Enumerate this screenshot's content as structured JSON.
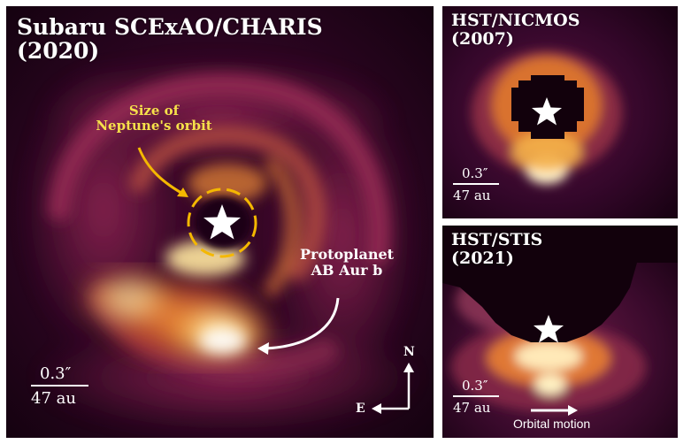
{
  "main_panel": {
    "title_line1": "Subaru SCExAO/CHARIS",
    "title_line2": "(2020)",
    "neptune_label_line1": "Size of",
    "neptune_label_line2": "Neptune's orbit",
    "planet_label_line1": "Protoplanet",
    "planet_label_line2": "AB Aur b",
    "scale_angle": "0.3″",
    "scale_distance": "47 au",
    "compass_north": "N",
    "compass_east": "E"
  },
  "nicmos_panel": {
    "title_line1": "HST/NICMOS",
    "title_line2": "(2007)",
    "scale_angle": "0.3″",
    "scale_distance": "47 au"
  },
  "stis_panel": {
    "title_line1": "HST/STIS",
    "title_line2": "(2021)",
    "scale_angle": "0.3″",
    "scale_distance": "47 au",
    "motion_label": "Orbital motion"
  },
  "colors": {
    "background_dark": "#1e0316",
    "mid_magenta": "#6a1450",
    "orange": "#e07a2a",
    "bright_yellow": "#fff2b0",
    "neptune_ring": "#f4b800",
    "neptune_text": "#f6e14a"
  },
  "icons": {
    "star": "star-icon",
    "arrow": "curved-arrow-icon",
    "compass": "compass-arrows-icon"
  }
}
